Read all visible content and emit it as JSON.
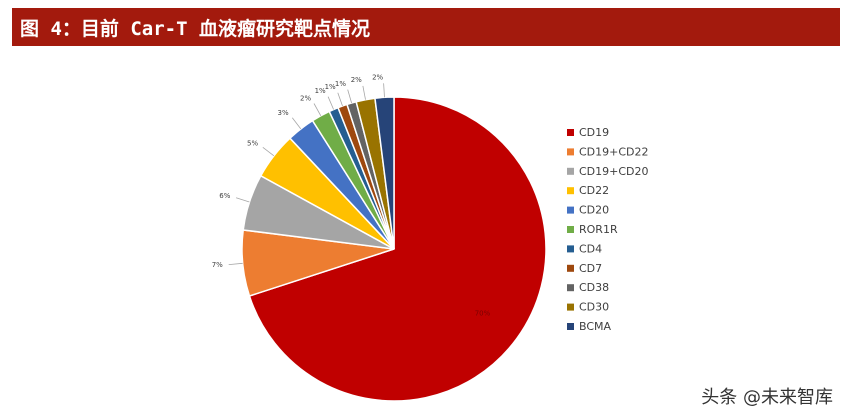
{
  "figure": {
    "label": "图 4：",
    "title": "目前 Car-T 血液瘤研究靶点情况"
  },
  "watermark": "头条 @未来智库",
  "chart_data": {
    "type": "pie",
    "title": "",
    "legend_position": "right",
    "slices": [
      {
        "label": "CD19",
        "value": 70,
        "display": "70%",
        "color": "#c00000"
      },
      {
        "label": "CD19+CD22",
        "value": 7,
        "display": "7%",
        "color": "#ed7d31"
      },
      {
        "label": "CD19+CD20",
        "value": 6,
        "display": "6%",
        "color": "#a5a5a5"
      },
      {
        "label": "CD22",
        "value": 5,
        "display": "5%",
        "color": "#ffc000"
      },
      {
        "label": "CD20",
        "value": 3,
        "display": "3%",
        "color": "#4472c4"
      },
      {
        "label": "ROR1R",
        "value": 2,
        "display": "2%",
        "color": "#70ad47"
      },
      {
        "label": "CD4",
        "value": 1,
        "display": "1%",
        "color": "#255e91"
      },
      {
        "label": "CD7",
        "value": 1,
        "display": "1%",
        "color": "#9e480e"
      },
      {
        "label": "CD38",
        "value": 1,
        "display": "1%",
        "color": "#636363"
      },
      {
        "label": "CD30",
        "value": 2,
        "display": "2%",
        "color": "#997300"
      },
      {
        "label": "BCMA",
        "value": 2,
        "display": "2%",
        "color": "#264478"
      }
    ]
  }
}
